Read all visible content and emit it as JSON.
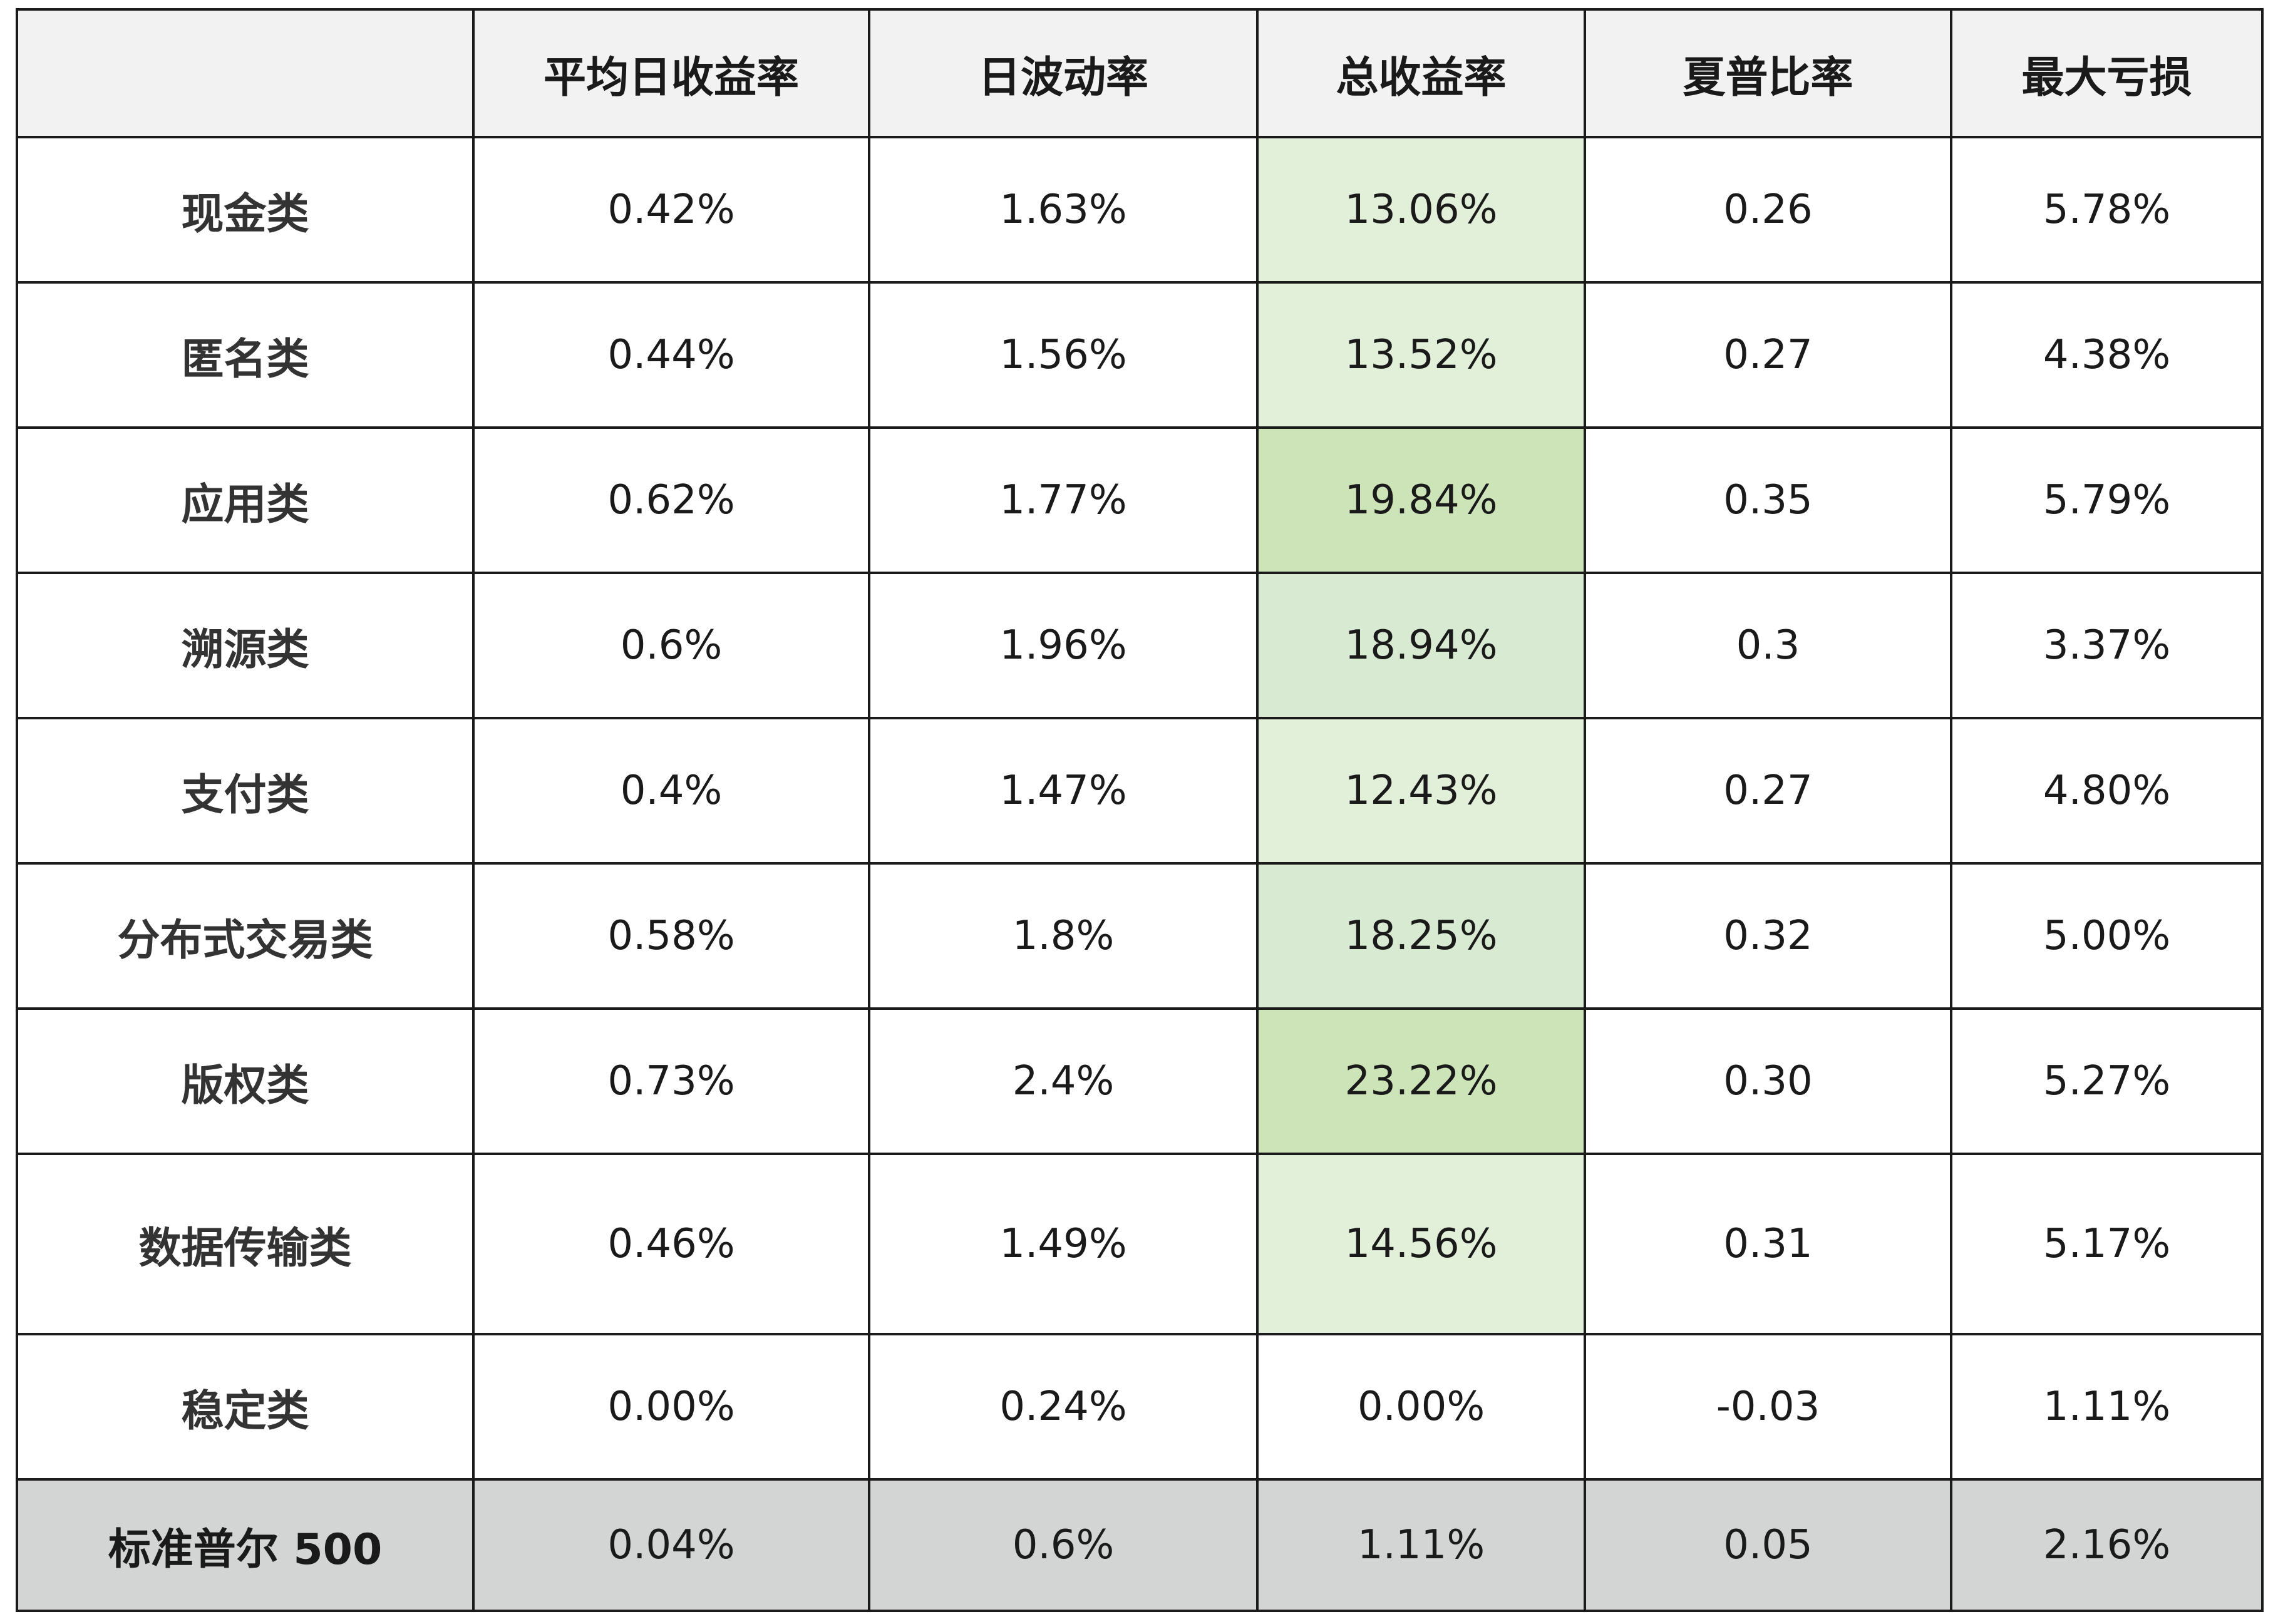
{
  "chart_data": {
    "type": "table",
    "columns": [
      "",
      "平均日收益率",
      "日波动率",
      "总收益率",
      "夏普比率",
      "最大亏损"
    ],
    "highlight_column_index": 3,
    "highlight_colors": {
      "light": "#e2efd9",
      "medium": "#d9ead3",
      "strong": "#cde4b9"
    },
    "benchmark_color": "#d2d5d4",
    "header_color": "#f2f2f2",
    "rows": [
      {
        "label": "现金类",
        "values": [
          "0.42%",
          "1.63%",
          "13.06%",
          "0.26",
          "5.78%"
        ],
        "total_return": 13.06
      },
      {
        "label": "匿名类",
        "values": [
          "0.44%",
          "1.56%",
          "13.52%",
          "0.27",
          "4.38%"
        ],
        "total_return": 13.52
      },
      {
        "label": "应用类",
        "values": [
          "0.62%",
          "1.77%",
          "19.84%",
          "0.35",
          "5.79%"
        ],
        "total_return": 19.84
      },
      {
        "label": "溯源类",
        "values": [
          "0.6%",
          "1.96%",
          "18.94%",
          "0.3",
          "3.37%"
        ],
        "total_return": 18.94
      },
      {
        "label": "支付类",
        "values": [
          "0.4%",
          "1.47%",
          "12.43%",
          "0.27",
          "4.80%"
        ],
        "total_return": 12.43
      },
      {
        "label": "分布式交易类",
        "values": [
          "0.58%",
          "1.8%",
          "18.25%",
          "0.32",
          "5.00%"
        ],
        "total_return": 18.25
      },
      {
        "label": "版权类",
        "values": [
          "0.73%",
          "2.4%",
          "23.22%",
          "0.30",
          "5.27%"
        ],
        "total_return": 23.22
      },
      {
        "label": "数据传输类",
        "values": [
          "0.46%",
          "1.49%",
          "14.56%",
          "0.31",
          "5.17%"
        ],
        "total_return": 14.56
      },
      {
        "label": "稳定类",
        "values": [
          "0.00%",
          "0.24%",
          "0.00%",
          "-0.03",
          "1.11%"
        ],
        "total_return": 0.0
      },
      {
        "label": "标准普尔 500",
        "values": [
          "0.04%",
          "0.6%",
          "1.11%",
          "0.05",
          "2.16%"
        ],
        "total_return": 1.11,
        "benchmark": true
      }
    ]
  }
}
